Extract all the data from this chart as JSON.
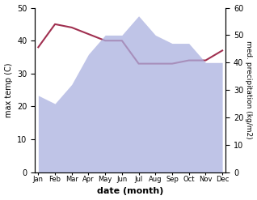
{
  "months": [
    "Jan",
    "Feb",
    "Mar",
    "Apr",
    "May",
    "Jun",
    "Jul",
    "Aug",
    "Sep",
    "Oct",
    "Nov",
    "Dec"
  ],
  "month_x": [
    0,
    1,
    2,
    3,
    4,
    5,
    6,
    7,
    8,
    9,
    10,
    11
  ],
  "precipitation": [
    28,
    25,
    32,
    43,
    50,
    50,
    57,
    50,
    47,
    47,
    40,
    40
  ],
  "temperature": [
    38,
    45,
    44,
    42,
    40,
    40,
    33,
    33,
    33,
    34,
    34,
    37
  ],
  "precip_color": "#aab0e0",
  "temp_color": "#a03050",
  "ylim_left": [
    0,
    50
  ],
  "ylim_right": [
    0,
    60
  ],
  "ylabel_left": "max temp (C)",
  "ylabel_right": "med. precipitation (kg/m2)",
  "xlabel": "date (month)",
  "background_color": "#ffffff"
}
